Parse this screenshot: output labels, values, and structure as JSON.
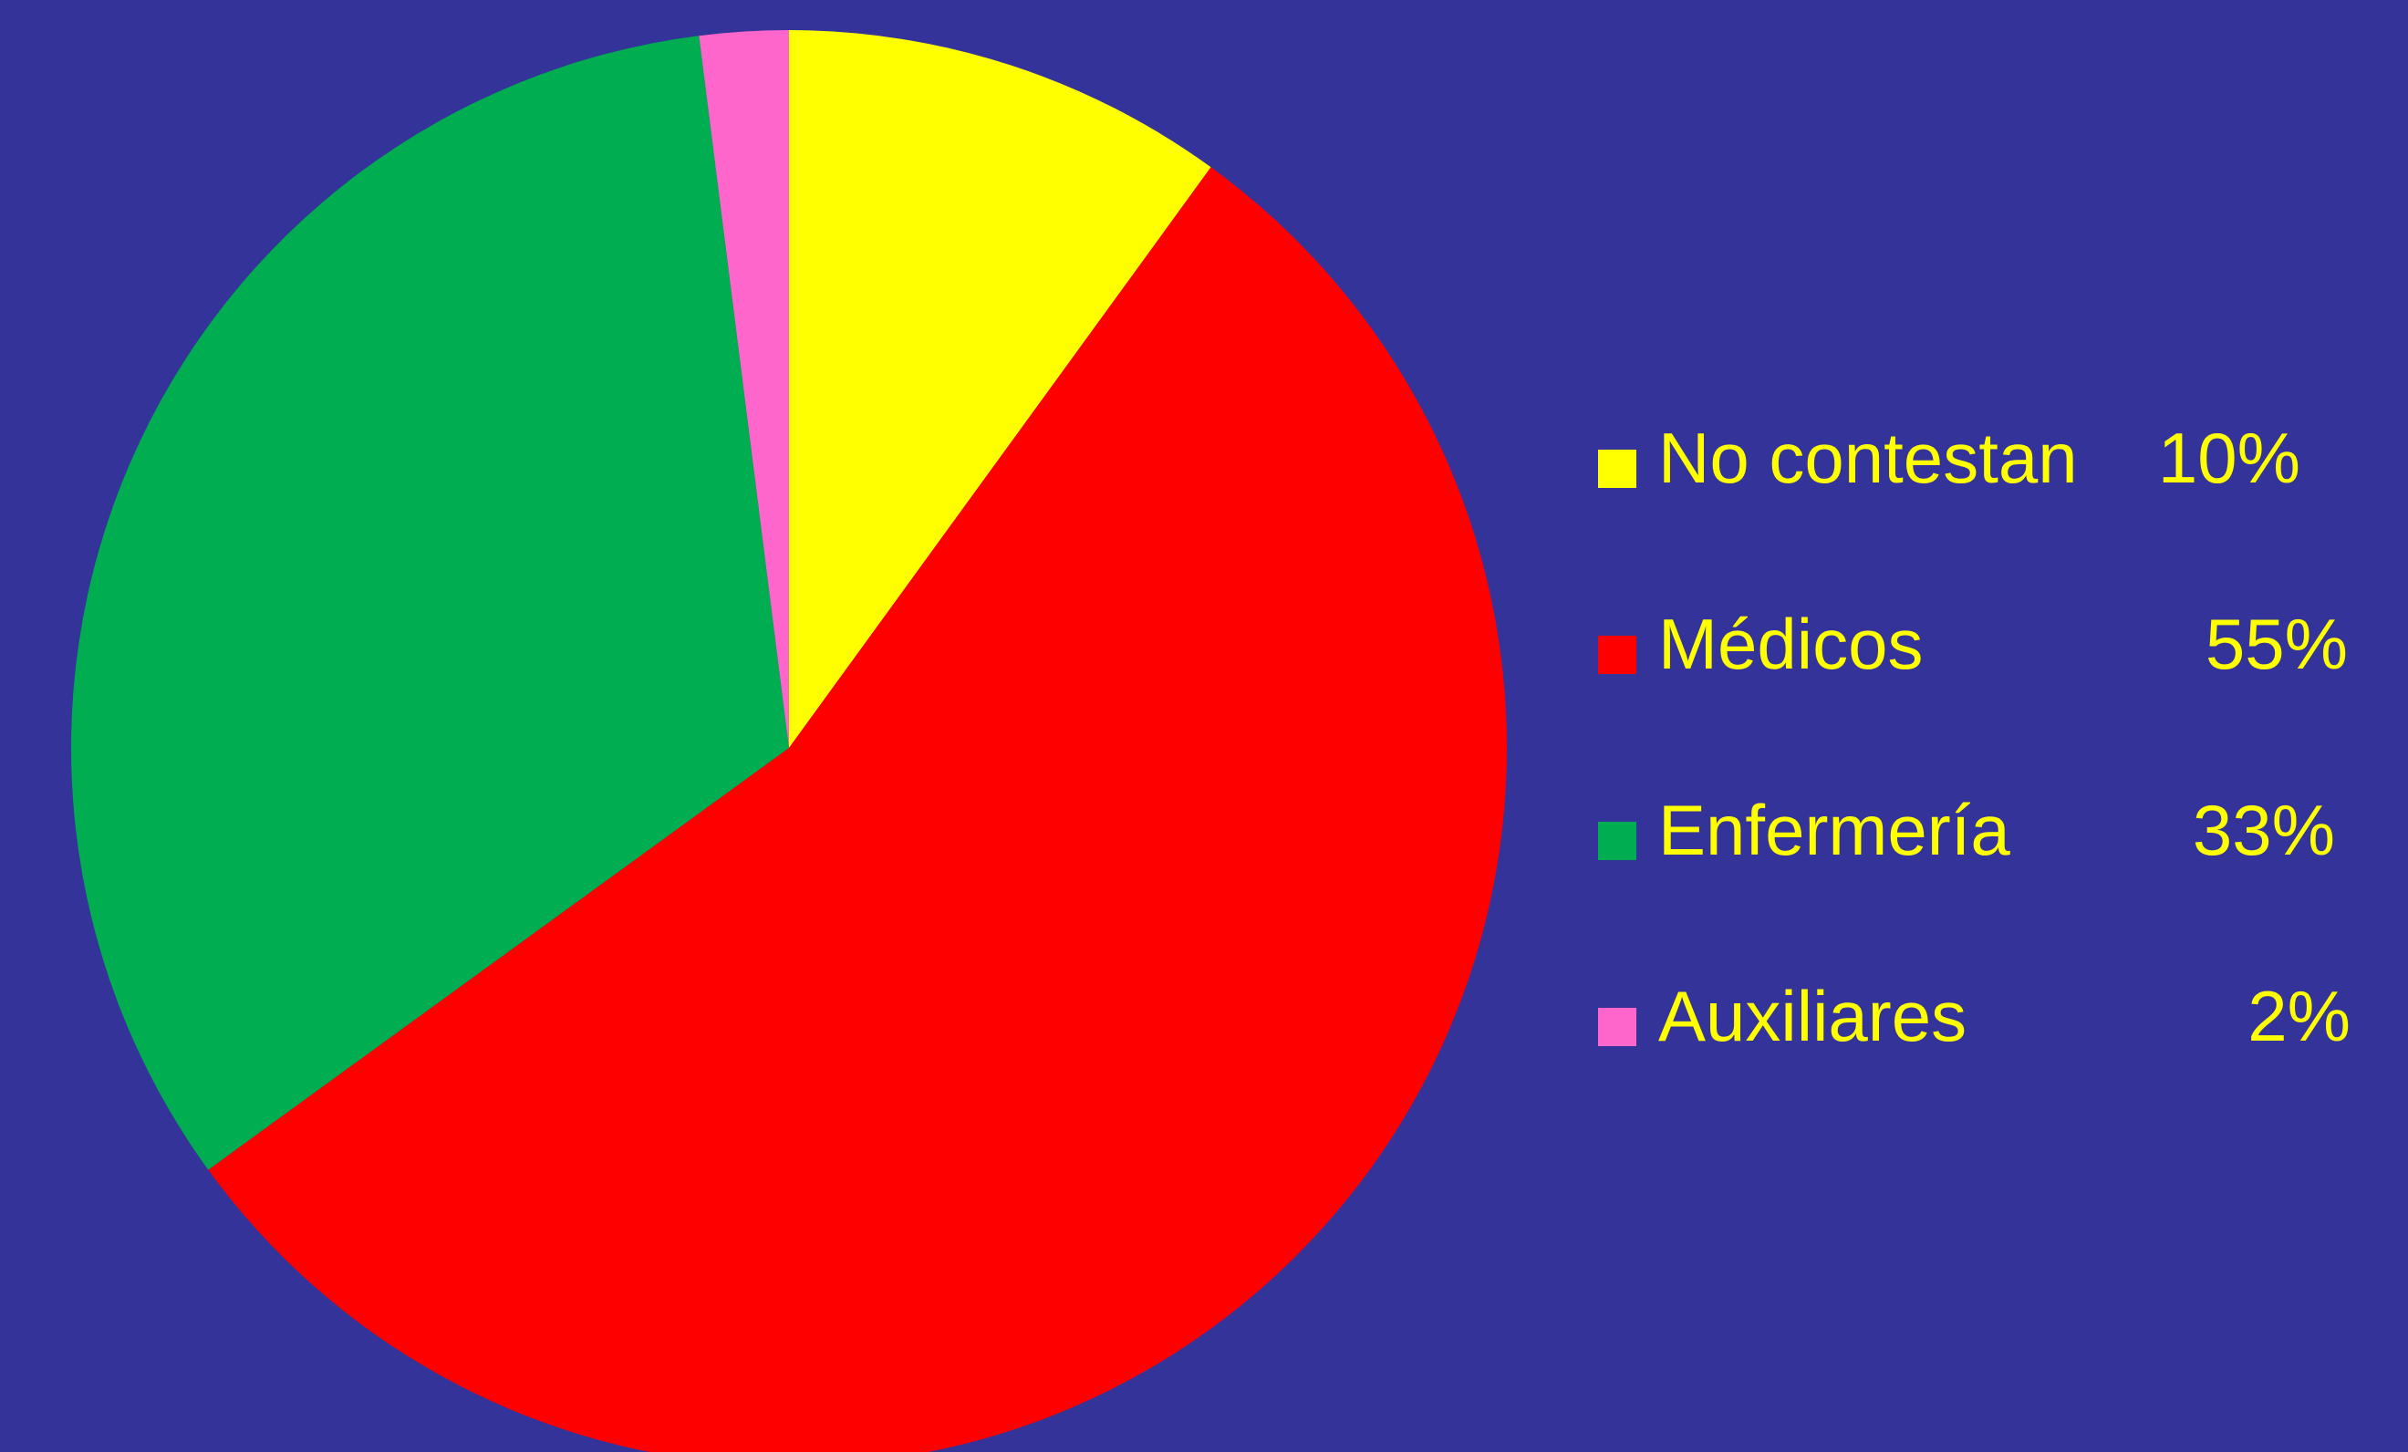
{
  "chart_data": {
    "type": "pie",
    "title": "",
    "legend_position": "right",
    "slices": [
      {
        "label": "No contestan",
        "value": 10,
        "display": "10%",
        "color": "#FFFF00"
      },
      {
        "label": "Médicos",
        "value": 55,
        "display": "55%",
        "color": "#FF0000"
      },
      {
        "label": "Enfermería",
        "value": 33,
        "display": "33%",
        "color": "#00AD50"
      },
      {
        "label": "Auxiliares",
        "value": 2,
        "display": "2%",
        "color": "#FF66CC"
      }
    ],
    "legend_text_color": "#FFFF00",
    "background_color": "#343399"
  }
}
